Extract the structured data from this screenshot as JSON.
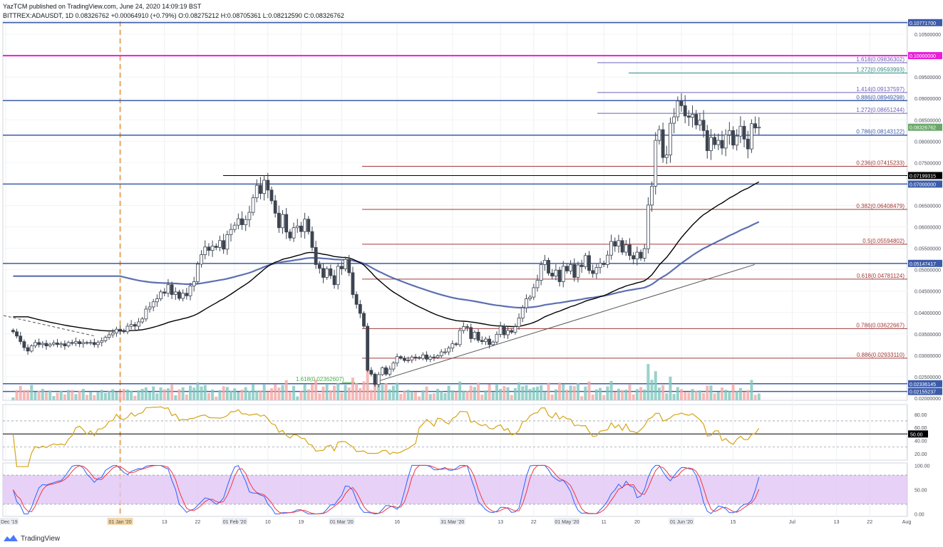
{
  "header": {
    "line1": "YazTCM published on TradingView.com, June 24, 2020 14:09:19 BST",
    "line2": "BITTREX:ADAUSDT, 1D  0.08326762  +0.00064910 (+0.79%)  O:0.08275212  H:0.08705361  L:0.08212590  C:0.08326762"
  },
  "footer": {
    "brand": "TradingView"
  },
  "colors": {
    "up": "#26a69a",
    "down": "#ef5350",
    "candle_body": "#3d4451",
    "blue_line": "#3c5ba9",
    "magenta": "#e91ed9",
    "fib_red": "#a23a3a",
    "fib_purple": "#6c5fb8",
    "teal": "#2e8b82",
    "ema_black": "#000000",
    "ema_blue": "#4a5fa8",
    "rsi_line": "#d4a516",
    "stoch_k": "#2962ff",
    "stoch_d": "#f23645",
    "stoch_band": "#e1c6f5",
    "date_marker": "#e8a65a"
  },
  "chart_data": [
    {
      "type": "candlestick",
      "title": "BITTREX:ADAUSDT, 1D",
      "ylim": [
        0.0195,
        0.108
      ],
      "y_ticks": [
        "0.10500000",
        "0.10000000",
        "0.09500000",
        "0.09000000",
        "0.08500000",
        "0.08000000",
        "0.07500000",
        "0.06500000",
        "0.06000000",
        "0.05500000",
        "0.05000000",
        "0.04500000",
        "0.04000000",
        "0.03500000",
        "0.03000000",
        "0.02500000",
        "0.02000000"
      ],
      "x_ticks": [
        {
          "label": "01 Dec '19",
          "date": "2019-12-01"
        },
        {
          "label": "01 Jan '20",
          "date": "2020-01-01"
        },
        {
          "label": "13",
          "date": "2020-01-13"
        },
        {
          "label": "22",
          "date": "2020-01-22"
        },
        {
          "label": "01 Feb '20",
          "date": "2020-02-01"
        },
        {
          "label": "10",
          "date": "2020-02-10"
        },
        {
          "label": "19",
          "date": "2020-02-19"
        },
        {
          "label": "01 Mar '20",
          "date": "2020-03-01"
        },
        {
          "label": "16",
          "date": "2020-03-16"
        },
        {
          "label": "31 Mar '20",
          "date": "2020-03-31"
        },
        {
          "label": "13",
          "date": "2020-04-13"
        },
        {
          "label": "22",
          "date": "2020-04-22"
        },
        {
          "label": "01 May '20",
          "date": "2020-05-01"
        },
        {
          "label": "11",
          "date": "2020-05-11"
        },
        {
          "label": "20",
          "date": "2020-05-20"
        },
        {
          "label": "01 Jun '20",
          "date": "2020-06-01"
        },
        {
          "label": "15",
          "date": "2020-06-15"
        },
        {
          "label": "Jul",
          "date": "2020-07-01"
        },
        {
          "label": "13",
          "date": "2020-07-13"
        },
        {
          "label": "22",
          "date": "2020-07-22"
        },
        {
          "label": "Aug",
          "date": "2020-08-01"
        }
      ],
      "close_series": [
        0.0355,
        0.0345,
        0.0332,
        0.0318,
        0.031,
        0.0322,
        0.033,
        0.0325,
        0.0328,
        0.0322,
        0.0326,
        0.0329,
        0.0325,
        0.0327,
        0.0322,
        0.033,
        0.0328,
        0.0332,
        0.0327,
        0.033,
        0.0329,
        0.033,
        0.0325,
        0.033,
        0.0334,
        0.0342,
        0.0348,
        0.0352,
        0.0361,
        0.0358,
        0.0355,
        0.0368,
        0.0372,
        0.0368,
        0.0378,
        0.0385,
        0.0408,
        0.0413,
        0.0425,
        0.0432,
        0.0448,
        0.0445,
        0.0465,
        0.0442,
        0.0448,
        0.0433,
        0.0445,
        0.0439,
        0.0462,
        0.0472,
        0.0513,
        0.0535,
        0.0553,
        0.0545,
        0.0555,
        0.0552,
        0.0568,
        0.0548,
        0.0582,
        0.0594,
        0.0604,
        0.0619,
        0.0605,
        0.0617,
        0.0634,
        0.0668,
        0.0697,
        0.0678,
        0.0709,
        0.0686,
        0.0661,
        0.0632,
        0.0598,
        0.0629,
        0.0588,
        0.0574,
        0.0598,
        0.0602,
        0.0589,
        0.0618,
        0.0589,
        0.0552,
        0.0512,
        0.0503,
        0.0482,
        0.0502,
        0.0486,
        0.0465,
        0.0508,
        0.0502,
        0.0524,
        0.0493,
        0.0442,
        0.0419,
        0.0398,
        0.0368,
        0.0265,
        0.0256,
        0.0232,
        0.0255,
        0.0271,
        0.0256,
        0.0268,
        0.0282,
        0.0297,
        0.0293,
        0.0288,
        0.0289,
        0.0296,
        0.0295,
        0.0293,
        0.0301,
        0.0291,
        0.0296,
        0.0295,
        0.0299,
        0.0308,
        0.0308,
        0.0317,
        0.0327,
        0.0325,
        0.0358,
        0.0367,
        0.0365,
        0.0339,
        0.0354,
        0.0335,
        0.0332,
        0.0338,
        0.0325,
        0.0331,
        0.0349,
        0.0368,
        0.0348,
        0.0358,
        0.0354,
        0.0367,
        0.0387,
        0.0411,
        0.0432,
        0.0436,
        0.0458,
        0.0475,
        0.0512,
        0.0522,
        0.0492,
        0.0485,
        0.0499,
        0.0472,
        0.0508,
        0.0497,
        0.0512,
        0.0482,
        0.0511,
        0.0507,
        0.0533,
        0.0498,
        0.0491,
        0.0505,
        0.0515,
        0.0512,
        0.0534,
        0.0566,
        0.0555,
        0.0568,
        0.0541,
        0.0558,
        0.0533,
        0.0525,
        0.0541,
        0.0527,
        0.0549,
        0.0651,
        0.0695,
        0.0802,
        0.0827,
        0.0762,
        0.0768,
        0.0842,
        0.0857,
        0.0894,
        0.0883,
        0.0859,
        0.0856,
        0.0863,
        0.0838,
        0.0849,
        0.0825,
        0.0778,
        0.0809,
        0.0792,
        0.0802,
        0.0784,
        0.0815,
        0.0825,
        0.0791,
        0.0812,
        0.0835,
        0.0805,
        0.0782,
        0.0841,
        0.0831,
        0.0833
      ],
      "levels": [
        {
          "label": "",
          "value": 0.1077,
          "color": "#3c5ba9",
          "tag": "0.10771700"
        },
        {
          "label": "",
          "value": 0.1,
          "color": "#e91ed9",
          "tag": "0.10000000"
        },
        {
          "label": "1.618(0.09836302)",
          "value": 0.09836,
          "color": "#6c5fb8"
        },
        {
          "label": "1.272(0.09593993)",
          "value": 0.09594,
          "color": "#2e8b82"
        },
        {
          "label": "1.414(0.09137597)",
          "value": 0.09138,
          "color": "#6c5fb8"
        },
        {
          "label": "0.886(0.08949298)",
          "value": 0.08949,
          "color": "#3c5ba9"
        },
        {
          "label": "1.272(0.08651244)",
          "value": 0.08651,
          "color": "#6c5fb8"
        },
        {
          "label": "0.786(0.08143122)",
          "value": 0.08143,
          "color": "#3c5ba9"
        },
        {
          "label": "0.236(0.07415233)",
          "value": 0.07415,
          "color": "#a23a3a"
        },
        {
          "label": "",
          "value": 0.07199,
          "color": "#000000",
          "tag": "0.07199315"
        },
        {
          "label": "",
          "value": 0.07,
          "color": "#3c5ba9",
          "tag": "0.07000000"
        },
        {
          "label": "0.382(0.06408479)",
          "value": 0.06408,
          "color": "#a23a3a"
        },
        {
          "label": "0.5(0.05594802)",
          "value": 0.05595,
          "color": "#a23a3a"
        },
        {
          "label": "",
          "value": 0.05147,
          "color": "#3c5ba9",
          "tag": "0.05147417"
        },
        {
          "label": "0.618(0.04781124)",
          "value": 0.04781,
          "color": "#a23a3a"
        },
        {
          "label": "0.786(0.03622667)",
          "value": 0.03623,
          "color": "#a23a3a"
        },
        {
          "label": "0.886(0.02933110)",
          "value": 0.02933,
          "color": "#a23a3a"
        },
        {
          "label": "1.618(0.02362607)",
          "value": 0.02363,
          "color": "#4caf50"
        },
        {
          "label": "",
          "value": 0.02336,
          "color": "#3c5ba9",
          "tag": "0.02336145"
        },
        {
          "label": "",
          "value": 0.02155,
          "color": "#3c5ba9",
          "tag": "0.02155237"
        }
      ],
      "last_price_tag": "0.08326762"
    },
    {
      "type": "line",
      "ylim": [
        10,
        95
      ],
      "y_ticks": [
        "80.00",
        "60.00",
        "40.00",
        "20.00"
      ],
      "reference_level_tag": "50.00"
    },
    {
      "type": "line",
      "ylim": [
        -5,
        105
      ],
      "y_ticks": [
        "100.00",
        "50.00",
        "0.00"
      ]
    }
  ]
}
